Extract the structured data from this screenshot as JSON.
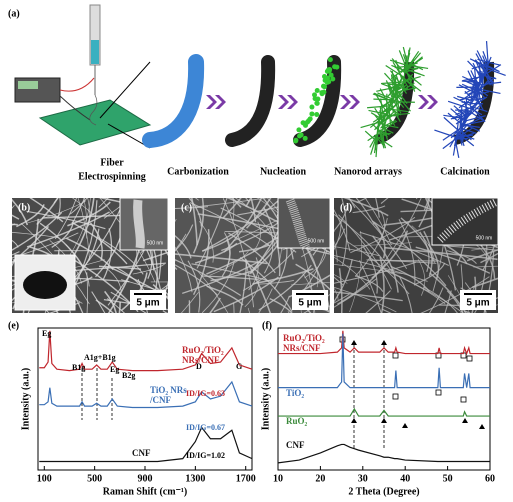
{
  "panel_a": {
    "label": "(a)",
    "steps": [
      [
        "Fiber",
        "Electrospinning"
      ],
      [
        "Carbonization"
      ],
      [
        "Nucleation"
      ],
      [
        "Nanorod arrays"
      ],
      [
        "Calcination"
      ]
    ]
  },
  "sem": [
    {
      "label": "(b)",
      "scale": "5 μm",
      "inset_scale": "500 nm"
    },
    {
      "label": "(c)",
      "scale": "5 μm",
      "inset_scale": "500 nm"
    },
    {
      "label": "(d)",
      "scale": "5 μm",
      "inset_scale": "500 nm"
    }
  ],
  "chart_data": [
    {
      "type": "line",
      "panel": "(e)",
      "x_label": "Raman Shift (cm⁻¹)",
      "y_label": "Intensity (a.u.)",
      "x": [
        60,
        100,
        130,
        144,
        160,
        200,
        300,
        380,
        400,
        420,
        480,
        516,
        550,
        600,
        640,
        680,
        800,
        1000,
        1200,
        1300,
        1350,
        1420,
        1500,
        1590,
        1650,
        1750
      ],
      "series": [
        {
          "name": "RuO₂/TiO₂ NRs/CNF",
          "color": "#c0262d",
          "values": [
            72,
            72,
            76,
            98,
            75,
            71,
            70,
            71,
            75,
            71,
            71,
            74,
            71,
            71,
            76,
            71,
            70,
            70,
            71,
            74,
            82,
            75,
            76,
            86,
            74,
            71
          ]
        },
        {
          "name": "TiO₂ NRs /CNF",
          "color": "#3a6fb5",
          "values": [
            46,
            46,
            48,
            58,
            47,
            45,
            45,
            45,
            48,
            45,
            45,
            47,
            45,
            45,
            50,
            45,
            44,
            44,
            45,
            48,
            55,
            50,
            52,
            62,
            48,
            45
          ]
        },
        {
          "name": "CNF",
          "color": "#111111",
          "values": [
            6,
            6,
            6,
            6,
            6,
            6,
            6,
            6,
            6,
            6,
            6,
            6,
            6,
            6,
            6,
            6,
            6,
            6,
            8,
            20,
            30,
            22,
            22,
            28,
            12,
            8
          ]
        }
      ],
      "xlim": [
        50,
        1750
      ],
      "xticks": [
        100,
        500,
        900,
        1300,
        1700
      ],
      "ylim": [
        0,
        100
      ],
      "annotations": [
        "Eg",
        "A1g+B1g",
        "B1g",
        "Eg",
        "B2g",
        "D",
        "G",
        "ID/IG=0.63",
        "ID/IG=0.67",
        "ID/IG=1.02"
      ]
    },
    {
      "type": "line",
      "panel": "(f)",
      "x_label": "2 Theta (Degree)",
      "y_label": "Intensity (a.u.)",
      "x": [
        10,
        15,
        20,
        24,
        25,
        25.3,
        25.6,
        27,
        28,
        29,
        34,
        35,
        36,
        37.5,
        37.8,
        38.1,
        40,
        47.7,
        48,
        48.3,
        53.7,
        54,
        54.5,
        55,
        55.3,
        58,
        60
      ],
      "series": [
        {
          "name": "RuO₂/TiO₂ NRs/CNF",
          "color": "#c0262d",
          "values": [
            82,
            82,
            82,
            83,
            86,
            98,
            86,
            83,
            86,
            83,
            83,
            86,
            83,
            83,
            86,
            83,
            82,
            82,
            86,
            82,
            82,
            86,
            82,
            86,
            82,
            82,
            82
          ]
        },
        {
          "name": "TiO₂",
          "color": "#3a6fb5",
          "values": [
            58,
            58,
            58,
            58,
            62,
            96,
            62,
            58,
            58,
            58,
            58,
            58,
            58,
            58,
            70,
            58,
            58,
            58,
            72,
            58,
            58,
            68,
            58,
            68,
            58,
            58,
            58
          ]
        },
        {
          "name": "RuO₂",
          "color": "#3a8a3a",
          "values": [
            38,
            38,
            38,
            38,
            38,
            38,
            38,
            38,
            43,
            38,
            38,
            42,
            38,
            38,
            38,
            38,
            38,
            38,
            38,
            38,
            38,
            41,
            38,
            38,
            38,
            38,
            38
          ]
        },
        {
          "name": "CNF",
          "color": "#111111",
          "values": [
            5,
            7,
            12,
            17,
            18,
            18,
            18,
            16,
            15,
            14,
            10,
            9,
            9,
            8,
            8,
            8,
            7,
            6,
            6,
            6,
            6,
            6,
            6,
            6,
            6,
            6,
            6
          ]
        }
      ],
      "xlim": [
        10,
        60
      ],
      "xticks": [
        10,
        20,
        30,
        40,
        50,
        60
      ],
      "ylim": [
        0,
        100
      ]
    }
  ]
}
